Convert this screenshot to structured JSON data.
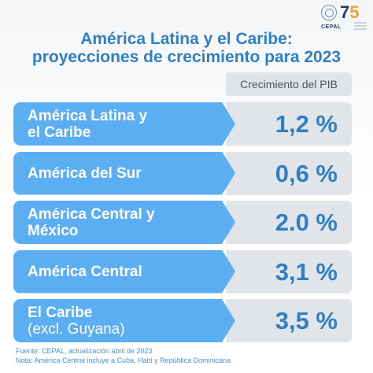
{
  "header": {
    "title_line1": "América Latina y el Caribe:",
    "title_line2": "proyecciones de crecimiento para 2023",
    "logo_text": "CEPAL",
    "badge_number_7": "7",
    "badge_number_5": "5"
  },
  "chart_data": {
    "type": "table",
    "title": "América Latina y el Caribe: proyecciones de crecimiento para 2023",
    "column_header": "Crecimiento del PIB",
    "rows": [
      {
        "label": "América Latina y\nel Caribe",
        "value_text": "1,2 %",
        "value": 1.2
      },
      {
        "label": "América del Sur",
        "value_text": "0,6 %",
        "value": 0.6
      },
      {
        "label": "América Central y\nMéxico",
        "value_text": "2.0 %",
        "value": 2.0
      },
      {
        "label": "América Central",
        "value_text": "3,1 %",
        "value": 3.1
      },
      {
        "label": "El Caribe",
        "label_sub": "(excl. Guyana)",
        "value_text": "3,5 %",
        "value": 3.5
      }
    ]
  },
  "footer": {
    "source": "Fuente: CEPAL, actualización abril de 2023",
    "note": "Nota: América Central incluye a Cuba, Haití y República Dominicana"
  },
  "colors": {
    "label_bg": "#5caef2",
    "value_bg": "#e1e5ea",
    "accent": "#2f7fc2"
  }
}
